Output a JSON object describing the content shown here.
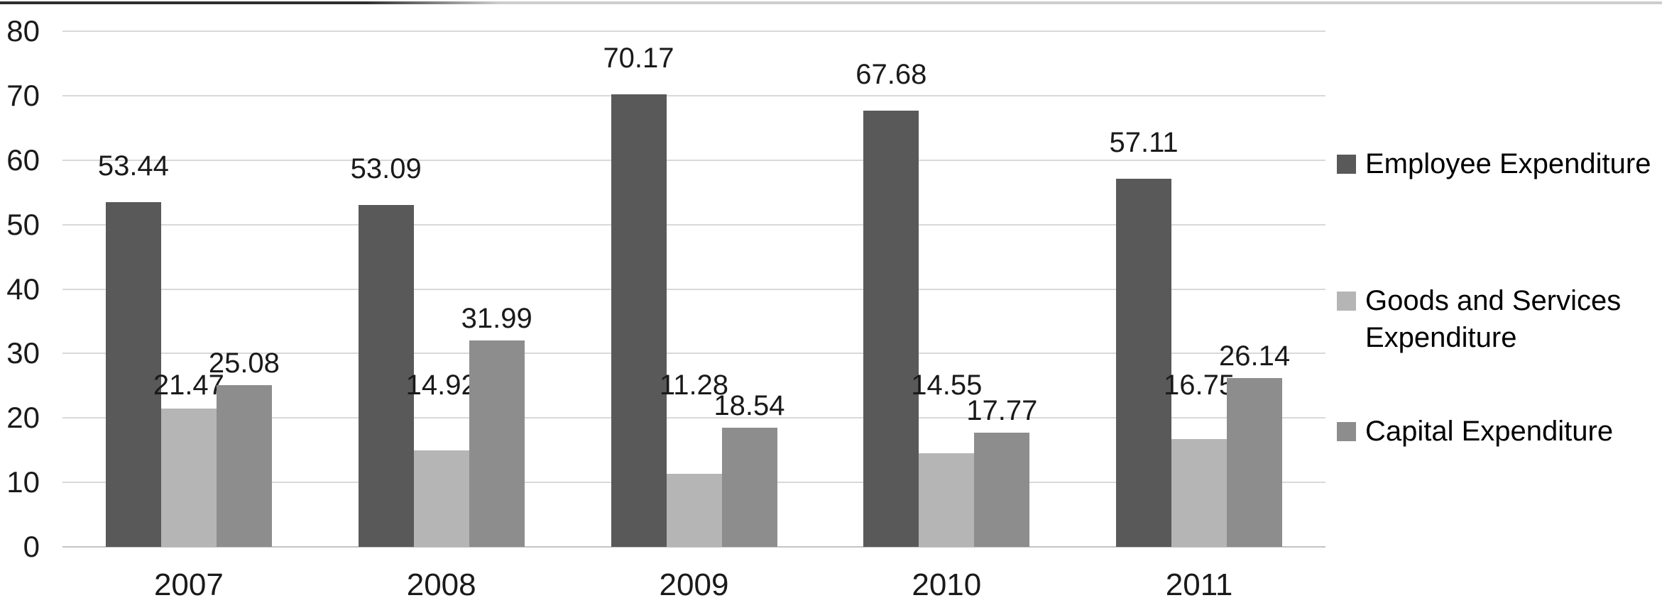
{
  "chart_data": {
    "type": "bar",
    "title": "",
    "xlabel": "",
    "ylabel": "",
    "categories": [
      "2007",
      "2008",
      "2009",
      "2010",
      "2011"
    ],
    "series": [
      {
        "name": "Employee Expenditure",
        "color": "#595959",
        "values": [
          53.44,
          53.09,
          70.17,
          67.68,
          57.11
        ]
      },
      {
        "name": "Goods and Services Expenditure",
        "color": "#b5b5b5",
        "values": [
          21.47,
          14.92,
          11.28,
          14.55,
          16.75
        ]
      },
      {
        "name": "Capital Expenditure",
        "color": "#8d8d8d",
        "values": [
          25.08,
          31.99,
          18.54,
          17.77,
          26.14
        ]
      }
    ],
    "ylim": [
      0,
      80
    ],
    "yticks": [
      0,
      10,
      20,
      30,
      40,
      50,
      60,
      70,
      80
    ],
    "grid": true,
    "legend_position": "right",
    "data_labels": true,
    "data_label_decimals": 2
  },
  "colors": {
    "background": "#ffffff",
    "gridline": "#d9d9d9",
    "axis_baseline": "#c4c4c4",
    "label_text": "#1a1a1a",
    "top_border_dark": "#2e2e2e",
    "top_border_light": "#cdcdcd"
  }
}
